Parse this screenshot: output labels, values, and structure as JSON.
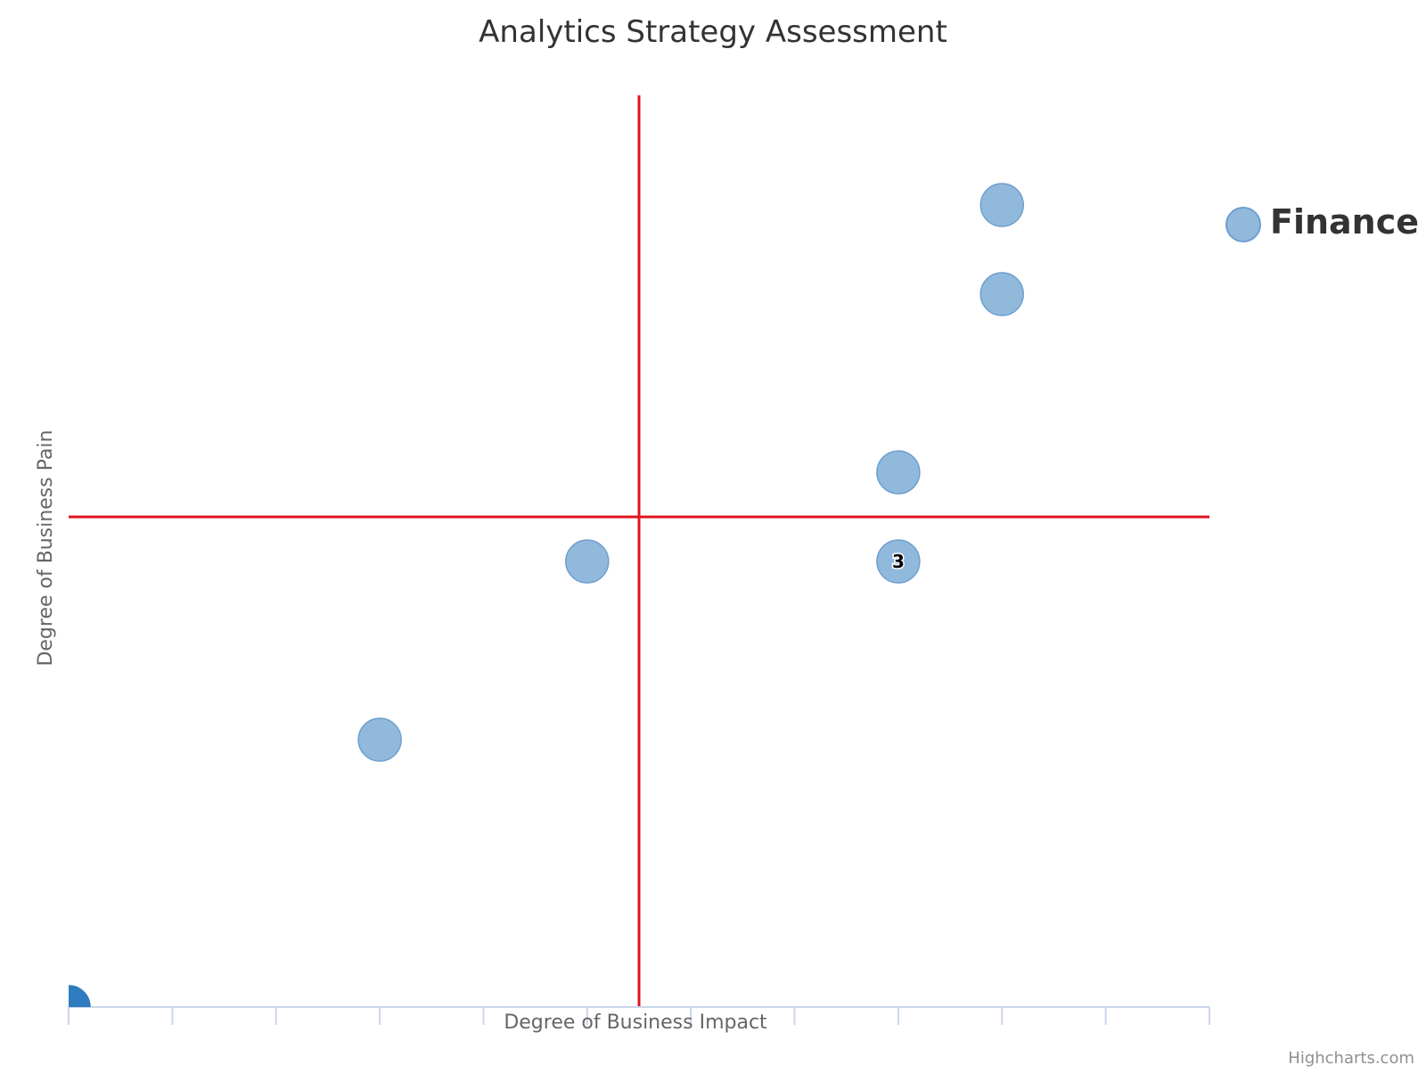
{
  "chart_data": {
    "type": "scatter",
    "title": "Analytics Strategy Assessment",
    "xlabel": "Degree of Business Impact",
    "ylabel": "Degree of Business Pain",
    "xlim": [
      0,
      11
    ],
    "ylim": [
      0,
      11
    ],
    "x_tick_interval": 1,
    "grid": false,
    "legend_position": "right",
    "quadrant_lines": {
      "x": 5.5,
      "y": 5.5,
      "color": "#e0141e"
    },
    "series": [
      {
        "name": "Finance",
        "color": "#7cadd6",
        "points": [
          {
            "x": 3,
            "y": 3
          },
          {
            "x": 5,
            "y": 5
          },
          {
            "x": 8,
            "y": 5,
            "label": "3"
          },
          {
            "x": 8,
            "y": 6
          },
          {
            "x": 9,
            "y": 8
          },
          {
            "x": 9,
            "y": 9
          }
        ]
      },
      {
        "color": "#2e7bbf",
        "points": [
          {
            "x": 0,
            "y": 0
          }
        ]
      }
    ]
  },
  "credits": "Highcharts.com"
}
